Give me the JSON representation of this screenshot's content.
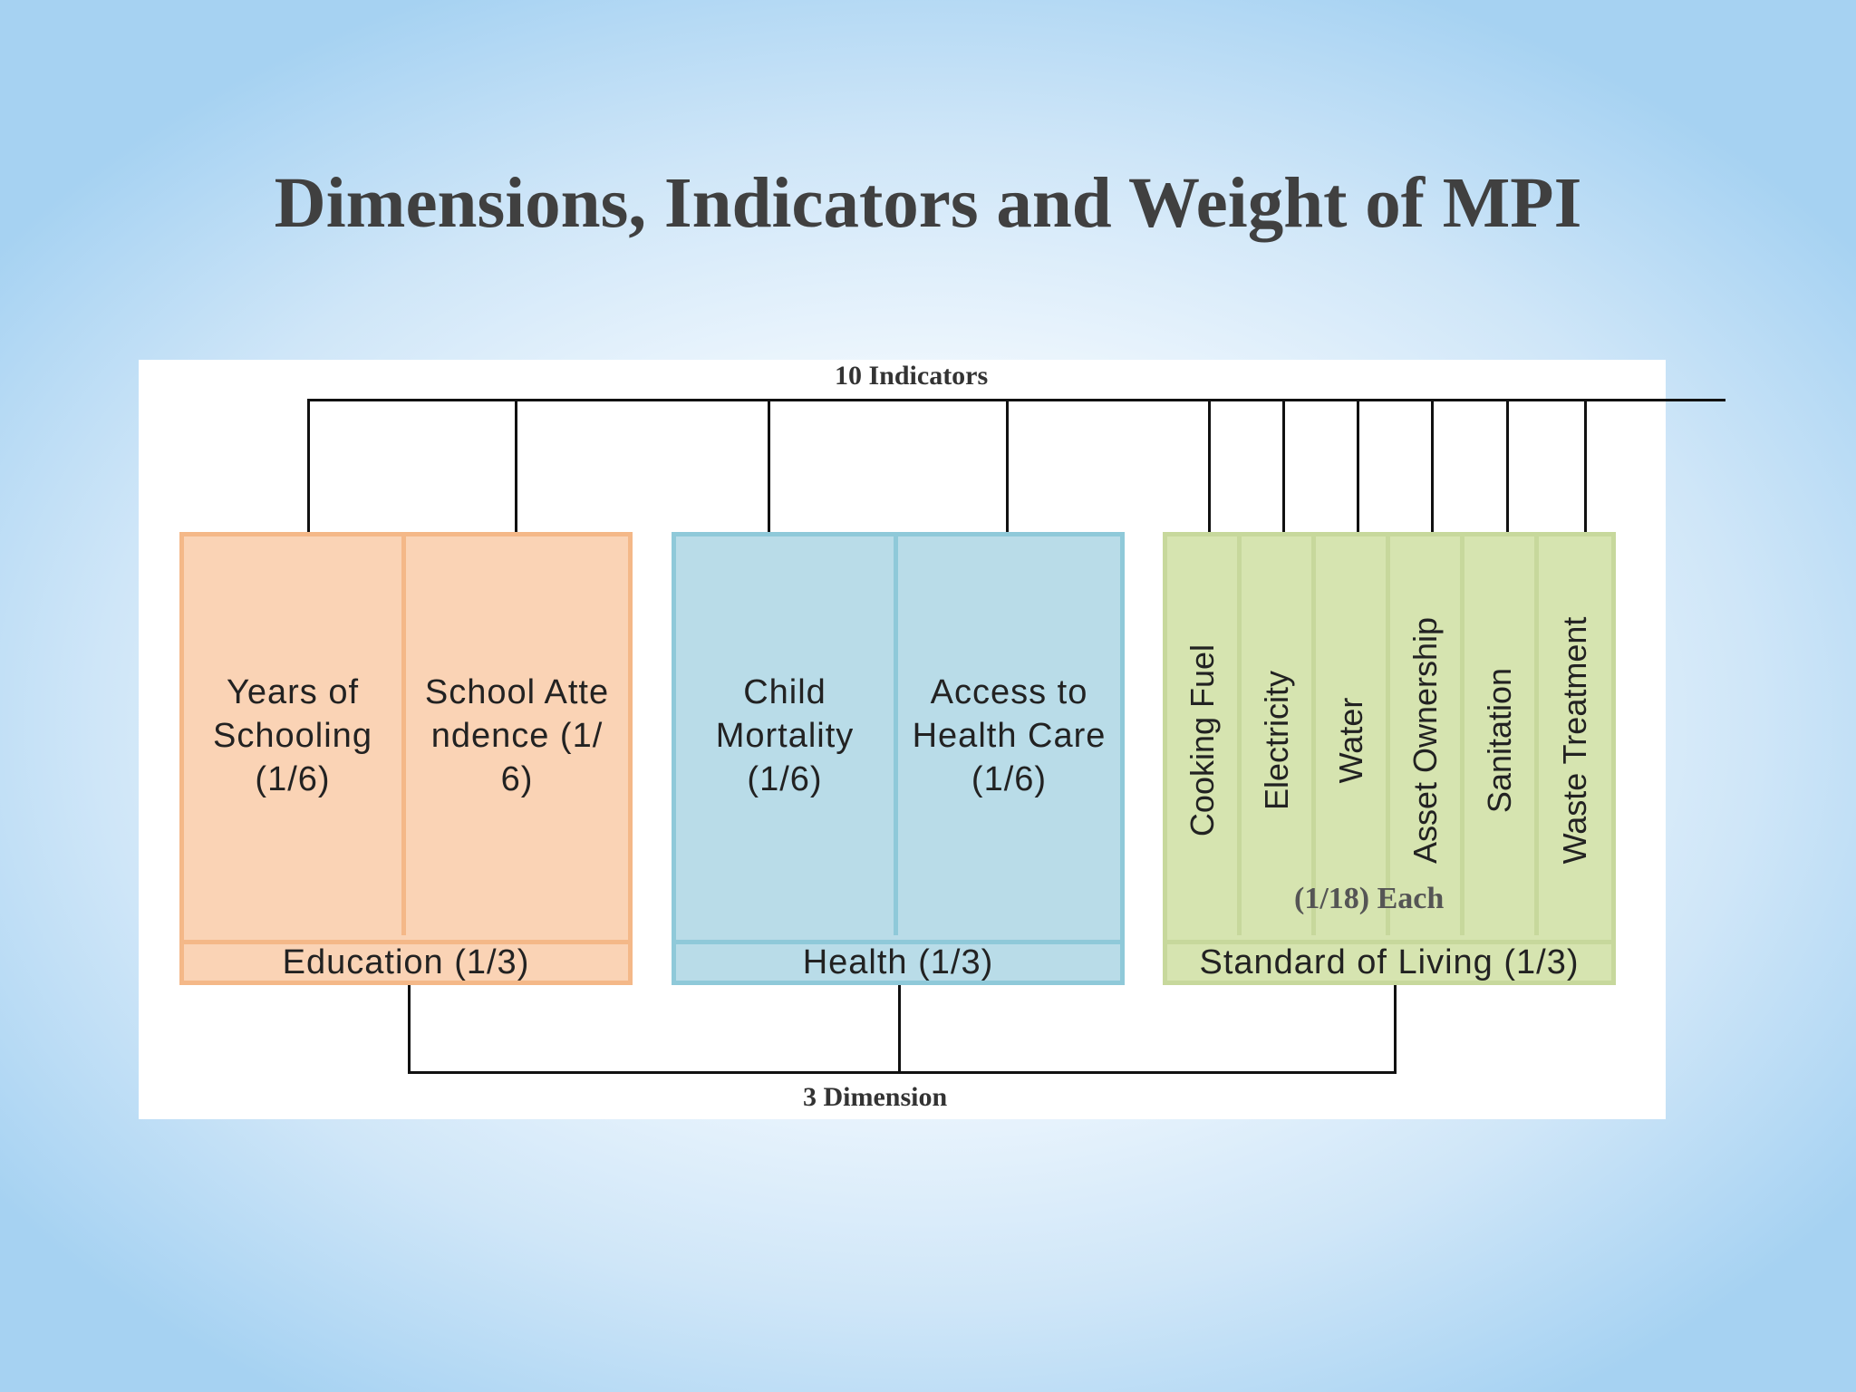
{
  "slide": {
    "title": "Dimensions, Indicators and Weight of MPI"
  },
  "diagram": {
    "top_label": "10 Indicators",
    "bottom_label": "3 Dimension",
    "groups": [
      {
        "id": "education",
        "footer": "Education (1/3)",
        "color": "#fad3b5",
        "border_color": "#f4b888",
        "indicators": [
          "Years of Schooling (1/6)",
          "School Attendence (1/6)"
        ]
      },
      {
        "id": "health",
        "footer": "Health (1/3)",
        "color": "#b9dce8",
        "border_color": "#8fc9d9",
        "indicators": [
          "Child Mortality (1/6)",
          "Access to Health Care (1/6)"
        ]
      },
      {
        "id": "living",
        "footer": "Standard of Living (1/3)",
        "color": "#d6e4b0",
        "border_color": "#c7d89c",
        "each_label": "(1/18) Each",
        "indicators": [
          "Cooking Fuel",
          "Electricity",
          "Water",
          "Asset Ownership",
          "Sanitation",
          "Waste Treatment"
        ]
      }
    ]
  }
}
